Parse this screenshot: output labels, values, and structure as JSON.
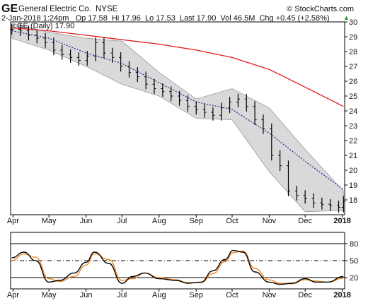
{
  "header": {
    "ticker": "GE",
    "company": "General Electric Co.",
    "exchange": "NYSE",
    "watermark": "© StockCharts.com",
    "quote": "2-Jan-2018 1:24pm   Op 17.58  Hi 17.96  Lo 17.53  Last 17.90  Vol 46.5M  Chg +0.45 (+2.58%)",
    "change_arrow": "▲",
    "legend": "GE (Daily) 17.90"
  },
  "colors": {
    "price": "#000000",
    "ma_long": "#e41a1c",
    "ma_short": "#1f2a8c",
    "band_fill": "#d9d9d9",
    "stoch_k": "#000000",
    "stoch_d": "#f08a24",
    "up_arrow": "#1a9c1a"
  },
  "chart_data": [
    {
      "type": "line",
      "title": "GE (Daily) 17.90",
      "x_labels": [
        "Apr",
        "May",
        "Jun",
        "Jul",
        "Aug",
        "Sep",
        "Oct",
        "Nov",
        "Dec",
        "2018"
      ],
      "y_ticks": [
        18,
        19,
        20,
        21,
        22,
        23,
        24,
        25,
        26,
        27,
        28,
        29,
        30
      ],
      "ylim": [
        17,
        30
      ],
      "grid": false,
      "series": [
        {
          "role": "price",
          "style": "ohlc-bars",
          "dates": [
            "2017-03-31",
            "2017-04-07",
            "2017-04-14",
            "2017-04-21",
            "2017-04-28",
            "2017-05-05",
            "2017-05-12",
            "2017-05-19",
            "2017-05-26",
            "2017-06-02",
            "2017-06-09",
            "2017-06-16",
            "2017-06-23",
            "2017-06-30",
            "2017-07-07",
            "2017-07-14",
            "2017-07-21",
            "2017-07-28",
            "2017-08-04",
            "2017-08-11",
            "2017-08-18",
            "2017-08-25",
            "2017-09-01",
            "2017-09-08",
            "2017-09-15",
            "2017-09-22",
            "2017-09-29",
            "2017-10-06",
            "2017-10-13",
            "2017-10-20",
            "2017-10-27",
            "2017-11-03",
            "2017-11-10",
            "2017-11-17",
            "2017-11-24",
            "2017-12-01",
            "2017-12-08",
            "2017-12-15",
            "2017-12-22",
            "2017-12-29",
            "2018-01-02"
          ],
          "close": [
            29.5,
            29.4,
            29.1,
            28.9,
            28.6,
            28.1,
            27.8,
            27.6,
            27.4,
            27.7,
            28.6,
            27.9,
            27.6,
            27.0,
            26.6,
            26.3,
            25.8,
            25.5,
            25.3,
            25.0,
            24.7,
            24.3,
            24.1,
            23.9,
            23.7,
            24.2,
            24.6,
            24.8,
            24.3,
            23.4,
            22.8,
            21.0,
            20.3,
            18.6,
            18.3,
            18.1,
            17.8,
            17.7,
            17.6,
            17.5,
            17.9
          ]
        },
        {
          "role": "ma_long",
          "style": "line",
          "x_dates": [
            "2017-03-31",
            "2017-05-01",
            "2017-06-01",
            "2017-07-01",
            "2017-08-01",
            "2017-09-01",
            "2017-10-01",
            "2017-11-01",
            "2017-12-01",
            "2018-01-02"
          ],
          "values": [
            29.6,
            29.4,
            29.1,
            28.8,
            28.5,
            28.1,
            27.6,
            26.8,
            25.6,
            24.3
          ]
        },
        {
          "role": "ma_short",
          "style": "dotted-line",
          "x_dates": [
            "2017-03-31",
            "2017-05-01",
            "2017-06-01",
            "2017-07-01",
            "2017-08-01",
            "2017-09-01",
            "2017-10-01",
            "2017-11-01",
            "2017-12-01",
            "2018-01-02"
          ],
          "values": [
            29.4,
            28.9,
            27.9,
            27.2,
            25.9,
            24.6,
            24.1,
            22.5,
            20.6,
            18.7
          ]
        },
        {
          "role": "band_upper",
          "style": "area-bound",
          "x_dates": [
            "2017-03-31",
            "2017-05-01",
            "2017-06-01",
            "2017-07-01",
            "2017-08-01",
            "2017-09-01",
            "2017-10-01",
            "2017-11-01",
            "2017-12-01",
            "2018-01-02"
          ],
          "values": [
            29.9,
            29.3,
            28.9,
            28.7,
            26.6,
            24.8,
            25.5,
            24.2,
            21.4,
            18.6
          ]
        },
        {
          "role": "band_lower",
          "style": "area-bound",
          "x_dates": [
            "2017-03-31",
            "2017-05-01",
            "2017-06-01",
            "2017-07-01",
            "2017-08-01",
            "2017-09-01",
            "2017-10-01",
            "2017-11-01",
            "2017-12-01",
            "2018-01-02"
          ],
          "values": [
            28.9,
            28.1,
            27.0,
            25.8,
            25.0,
            23.5,
            23.4,
            19.9,
            17.2,
            17.3
          ]
        }
      ]
    },
    {
      "type": "line",
      "x_labels": [
        "Apr",
        "May",
        "Jun",
        "Jul",
        "Aug",
        "Sep",
        "Oct",
        "Nov",
        "Dec",
        "2018"
      ],
      "y_ticks": [
        20,
        50,
        80
      ],
      "ylim": [
        0,
        100
      ],
      "reference_lines": [
        20,
        50,
        80
      ],
      "series": [
        {
          "role": "stoch_k",
          "x_dates": [
            "2017-03-31",
            "2017-04-10",
            "2017-04-20",
            "2017-05-01",
            "2017-05-10",
            "2017-05-22",
            "2017-06-01",
            "2017-06-08",
            "2017-06-20",
            "2017-07-01",
            "2017-07-10",
            "2017-07-20",
            "2017-08-01",
            "2017-08-15",
            "2017-08-25",
            "2017-09-05",
            "2017-09-15",
            "2017-09-25",
            "2017-10-02",
            "2017-10-10",
            "2017-10-20",
            "2017-11-01",
            "2017-11-10",
            "2017-11-20",
            "2017-12-01",
            "2017-12-10",
            "2017-12-20",
            "2018-01-02"
          ],
          "values": [
            55,
            65,
            50,
            12,
            15,
            28,
            47,
            65,
            45,
            10,
            22,
            28,
            18,
            15,
            10,
            12,
            32,
            52,
            68,
            65,
            30,
            12,
            8,
            10,
            18,
            12,
            12,
            22
          ]
        },
        {
          "role": "stoch_d",
          "x_dates": [
            "2017-03-31",
            "2017-04-10",
            "2017-04-20",
            "2017-05-01",
            "2017-05-10",
            "2017-05-22",
            "2017-06-01",
            "2017-06-08",
            "2017-06-20",
            "2017-07-01",
            "2017-07-10",
            "2017-07-20",
            "2017-08-01",
            "2017-08-15",
            "2017-08-25",
            "2017-09-05",
            "2017-09-15",
            "2017-09-25",
            "2017-10-02",
            "2017-10-10",
            "2017-10-20",
            "2017-11-01",
            "2017-11-10",
            "2017-11-20",
            "2017-12-01",
            "2017-12-10",
            "2017-12-20",
            "2018-01-02"
          ],
          "values": [
            50,
            62,
            56,
            18,
            13,
            22,
            42,
            62,
            52,
            15,
            18,
            28,
            20,
            16,
            11,
            11,
            27,
            48,
            64,
            67,
            36,
            16,
            10,
            9,
            16,
            14,
            12,
            19
          ]
        }
      ]
    }
  ]
}
